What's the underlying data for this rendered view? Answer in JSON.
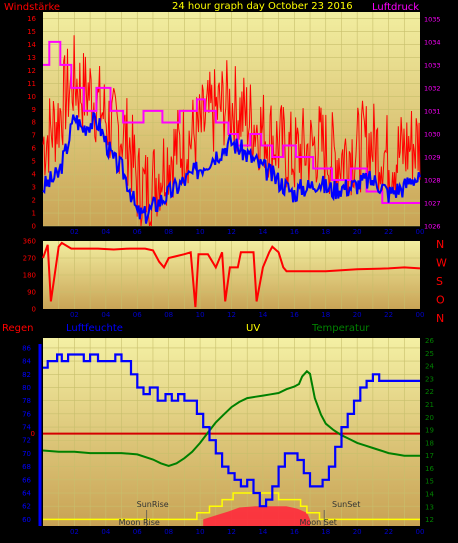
{
  "chart_data": [
    {
      "type": "line",
      "title": "24 hour graph day   October 23 2016",
      "left_label": "Windstärke",
      "right_label": "Luftdruck",
      "x_ticks": [
        "02",
        "04",
        "06",
        "08",
        "10",
        "12",
        "14",
        "16",
        "18",
        "20",
        "22",
        "00"
      ],
      "y_left_ticks": [
        "0",
        "1",
        "2",
        "3",
        "4",
        "5",
        "6",
        "7",
        "8",
        "9",
        "10",
        "11",
        "12",
        "13",
        "14",
        "15",
        "16"
      ],
      "y_right_ticks": [
        "1026",
        "1027",
        "1028",
        "1029",
        "1030",
        "1031",
        "1032",
        "1033",
        "1034",
        "1035"
      ],
      "ylim_left": [
        0,
        16.5
      ],
      "ylim_right": [
        1026,
        1035.3
      ],
      "colors": {
        "gust": "#ff0000",
        "wind": "#0000ff",
        "pressure": "#ff00ff"
      },
      "pressure": {
        "x": [
          0,
          0.4,
          0.4,
          1.1,
          1.1,
          1.8,
          1.8,
          2.6,
          2.6,
          3.4,
          3.4,
          4.3,
          4.3,
          5.1,
          5.1,
          6.4,
          6.4,
          7.6,
          7.6,
          8.7,
          8.7,
          9.8,
          9.8,
          10.3,
          10.3,
          11.0,
          11.0,
          11.8,
          11.8,
          12.4,
          12.4,
          13.2,
          13.2,
          13.9,
          13.9,
          14.6,
          14.6,
          15.3,
          15.3,
          16.1,
          16.1,
          17.2,
          17.2,
          18.4,
          18.4,
          19.6,
          19.6,
          20.6,
          20.6,
          21.6,
          21.6,
          24
        ],
        "y": [
          1033,
          1033,
          1034,
          1034,
          1033,
          1033,
          1032,
          1032,
          1031,
          1031,
          1032,
          1032,
          1031,
          1031,
          1030.5,
          1030.5,
          1031,
          1031,
          1030.5,
          1030.5,
          1031,
          1031,
          1031.5,
          1031.5,
          1031,
          1031,
          1030.5,
          1030.5,
          1030,
          1030,
          1029.5,
          1029.5,
          1030,
          1030,
          1029.5,
          1029.5,
          1029,
          1029,
          1029.5,
          1029.5,
          1029,
          1029,
          1028.5,
          1028.5,
          1028,
          1028,
          1028.5,
          1028.5,
          1027.5,
          1027.5,
          1027,
          1027
        ]
      },
      "wind_hourly": [
        3,
        3.5,
        4,
        6,
        8.5,
        7.5,
        8,
        8,
        6.5,
        5,
        4.5,
        3,
        1,
        0.8,
        1.5,
        2,
        2.5,
        3,
        3.5,
        4,
        4.5,
        5,
        5.5,
        6,
        6.5,
        6,
        5.5,
        5,
        4.5,
        4,
        3.5,
        3,
        2.5,
        3,
        3,
        3.5,
        3,
        2.8,
        3,
        3,
        3.2,
        3.5,
        3.5,
        3.2,
        2.5,
        2.8,
        3,
        3.8,
        3.5
      ],
      "gust_hourly": [
        6,
        7,
        8,
        10,
        11,
        10,
        10,
        9,
        8,
        7,
        7,
        6,
        3,
        2.5,
        3,
        4,
        5,
        5.5,
        6,
        6.5,
        7,
        8,
        8.5,
        9,
        9,
        8.5,
        8,
        7.5,
        7,
        6.5,
        6,
        5.5,
        5,
        5.5,
        5.5,
        6,
        5.5,
        5,
        5,
        5.5,
        5.5,
        6,
        6,
        5.5,
        5,
        5,
        5.5,
        6,
        6
      ]
    },
    {
      "type": "line",
      "series_name": "wind direction",
      "right_labels": [
        "N",
        "W",
        "S",
        "O",
        "N"
      ],
      "y_ticks": [
        "360",
        "270",
        "180",
        "90",
        "0"
      ],
      "ylim": [
        0,
        360
      ],
      "x_ticks": [
        "02",
        "04",
        "06",
        "08",
        "10",
        "12",
        "14",
        "16",
        "18",
        "20",
        "22",
        "00"
      ],
      "color": "#ff0000",
      "direction": {
        "x": [
          0,
          0.3,
          0.5,
          1.0,
          1.2,
          1.8,
          2.5,
          3.5,
          4.5,
          5.5,
          6.5,
          7.0,
          7.4,
          7.7,
          8.0,
          8.5,
          9.0,
          9.4,
          9.7,
          9.9,
          10.5,
          11.0,
          11.4,
          11.6,
          11.9,
          12.4,
          12.6,
          13.0,
          13.4,
          13.6,
          14.0,
          14.4,
          14.6,
          15.0,
          15.3,
          15.5,
          16.0,
          18.0,
          20.0,
          22.0,
          23.0,
          24.0
        ],
        "y": [
          270,
          340,
          40,
          330,
          350,
          320,
          320,
          320,
          315,
          320,
          320,
          310,
          250,
          220,
          270,
          280,
          290,
          300,
          10,
          290,
          290,
          220,
          300,
          40,
          220,
          220,
          300,
          300,
          300,
          40,
          220,
          300,
          330,
          300,
          220,
          200,
          200,
          200,
          210,
          215,
          220,
          215
        ]
      }
    },
    {
      "type": "line",
      "labels": {
        "rain": "Regen",
        "humidity": "Luftfeuchte",
        "uv": "UV",
        "temperature": "Temperatur",
        "sunrise": "SunRise",
        "sunset": "SunSet",
        "moonrise": "Moon Rise",
        "moonset": "Moon Set"
      },
      "rain_ticks": [
        "0"
      ],
      "humidity_ticks": [
        "60",
        "62",
        "64",
        "66",
        "68",
        "70",
        "72",
        "74",
        "76",
        "78",
        "80",
        "82",
        "84",
        "86"
      ],
      "temp_ticks": [
        "12",
        "13",
        "14",
        "15",
        "16",
        "17",
        "18",
        "19",
        "20",
        "21",
        "22",
        "23",
        "24",
        "25",
        "26"
      ],
      "x_ticks": [
        "02",
        "04",
        "06",
        "08",
        "10",
        "12",
        "14",
        "16",
        "18",
        "20",
        "22",
        "00"
      ],
      "ylim_humidity": [
        59,
        87.5
      ],
      "ylim_temp": [
        11.5,
        26.2
      ],
      "rain_level": 73,
      "colors": {
        "humidity": "#0000ff",
        "temperature": "#008000",
        "rain": "#d40000",
        "uv": "#ffff00",
        "uv_fill": "#ff2a3c"
      },
      "humidity": {
        "x": [
          0,
          0.3,
          0.3,
          0.9,
          0.9,
          1.2,
          1.2,
          1.6,
          1.6,
          2.6,
          2.6,
          3.0,
          3.0,
          3.5,
          3.5,
          4.6,
          4.6,
          5.0,
          5.0,
          5.6,
          5.6,
          6.0,
          6.0,
          6.4,
          6.4,
          6.8,
          6.8,
          7.3,
          7.3,
          7.8,
          7.8,
          8.2,
          8.2,
          8.6,
          8.6,
          9.0,
          9.0,
          9.4,
          9.4,
          9.8,
          9.8,
          10.2,
          10.2,
          10.6,
          10.6,
          11.0,
          11.0,
          11.4,
          11.4,
          11.8,
          11.8,
          12.2,
          12.2,
          12.6,
          12.6,
          13.0,
          13.0,
          13.4,
          13.4,
          13.8,
          13.8,
          14.2,
          14.2,
          14.6,
          14.6,
          15.0,
          15.0,
          15.4,
          15.4,
          15.8,
          15.8,
          16.2,
          16.2,
          16.6,
          16.6,
          17.0,
          17.0,
          17.4,
          17.4,
          17.8,
          17.8,
          18.2,
          18.2,
          18.6,
          18.6,
          19.0,
          19.0,
          19.4,
          19.4,
          19.8,
          19.8,
          20.2,
          20.2,
          20.6,
          20.6,
          21.0,
          21.0,
          21.4,
          21.4,
          21.8,
          21.8,
          22.4,
          22.4,
          24
        ],
        "y": [
          83,
          83,
          84,
          84,
          85,
          85,
          84,
          84,
          85,
          85,
          84,
          84,
          85,
          85,
          84,
          84,
          85,
          85,
          84,
          84,
          82,
          82,
          80,
          80,
          79,
          79,
          80,
          80,
          78,
          78,
          79,
          79,
          78,
          78,
          79,
          79,
          78,
          78,
          78,
          78,
          76,
          76,
          74,
          74,
          72,
          72,
          70,
          70,
          68,
          68,
          67,
          67,
          66,
          66,
          65,
          65,
          66,
          66,
          64,
          64,
          62,
          62,
          63,
          63,
          65,
          65,
          68,
          68,
          70,
          70,
          70,
          70,
          69,
          69,
          67,
          67,
          65,
          65,
          65,
          65,
          66,
          66,
          68,
          68,
          71,
          71,
          74,
          74,
          76,
          76,
          78,
          78,
          80,
          80,
          81,
          81,
          82,
          82,
          81,
          81,
          81,
          81,
          81,
          81
        ]
      },
      "temperature": {
        "x": [
          0,
          1,
          2,
          3,
          4,
          5,
          6,
          7,
          7.5,
          8,
          8.5,
          9,
          9.5,
          10,
          10.5,
          11,
          11.5,
          12,
          12.5,
          13,
          13.5,
          14,
          14.5,
          15,
          15.5,
          16,
          16.3,
          16.5,
          16.8,
          17,
          17.3,
          17.7,
          18,
          18.5,
          19,
          19.5,
          20,
          20.5,
          21,
          21.5,
          22,
          22.5,
          23,
          24
        ],
        "y": [
          17.4,
          17.3,
          17.3,
          17.2,
          17.2,
          17.2,
          17.1,
          16.7,
          16.4,
          16.2,
          16.4,
          16.8,
          17.3,
          18,
          18.8,
          19.6,
          20.2,
          20.8,
          21.2,
          21.5,
          21.6,
          21.7,
          21.8,
          21.9,
          22.2,
          22.4,
          22.6,
          23.2,
          23.6,
          23.4,
          21.5,
          20.2,
          19.5,
          19.0,
          18.6,
          18.3,
          18.0,
          17.8,
          17.6,
          17.4,
          17.2,
          17.1,
          17.0,
          17.0
        ]
      },
      "uv": {
        "x": [
          0,
          9.8,
          9.8,
          10.6,
          10.6,
          11.4,
          11.4,
          12.1,
          12.1,
          15.0,
          15.0,
          16.4,
          16.4,
          16.8,
          16.8,
          17.6,
          17.6,
          24
        ],
        "y": [
          60,
          60,
          61,
          61,
          62,
          62,
          63,
          63,
          64,
          64,
          63,
          63,
          62,
          62,
          61,
          61,
          60,
          60
        ]
      },
      "uv_fill": {
        "x": [
          10.2,
          11.0,
          11.8,
          12.5,
          13.5,
          14.5,
          15.5,
          16.2,
          16.8,
          17.0
        ],
        "y": [
          60,
          60.6,
          61.2,
          61.8,
          62.0,
          62.0,
          62.0,
          61.6,
          61.0,
          60
        ]
      },
      "sun_marks": {
        "sunrise": 6.6,
        "sunset": 17.9
      },
      "moon_marks": {
        "moonrise": 6.0,
        "moonset": 16.5
      }
    }
  ]
}
